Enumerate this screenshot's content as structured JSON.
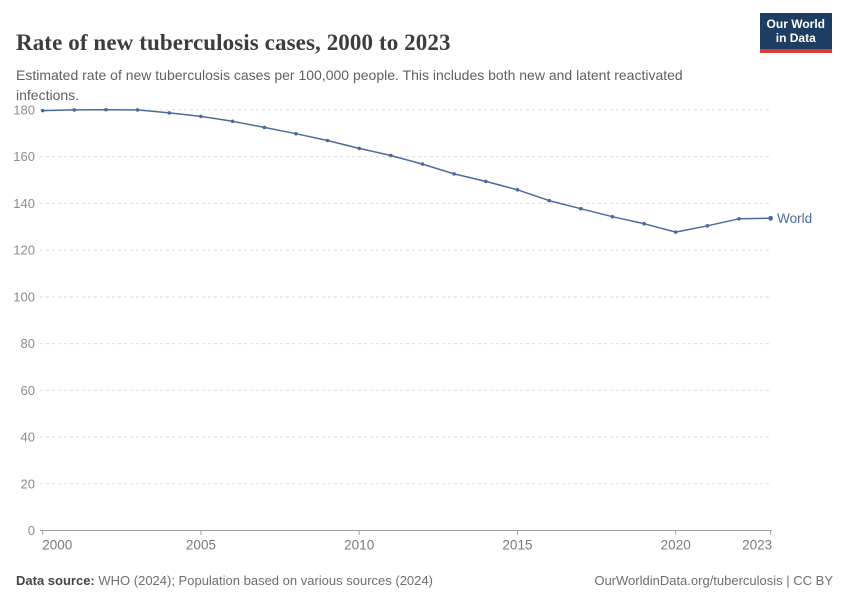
{
  "header": {
    "title": "Rate of new tuberculosis cases, 2000 to 2023",
    "subtitle": "Estimated rate of new tuberculosis cases per 100,000 people. This includes both new and latent reactivated infections.",
    "logo": {
      "line1": "Our World",
      "line2": "in Data"
    }
  },
  "chart_data": {
    "type": "line",
    "title": "Rate of new tuberculosis cases, 2000 to 2023",
    "xlabel": "",
    "ylabel": "",
    "xlim": [
      2000,
      2023
    ],
    "ylim": [
      0,
      180
    ],
    "grid": "horizontal-dashed",
    "legend_position": "end-of-line-label",
    "x_ticks": [
      2000,
      2005,
      2010,
      2015,
      2020,
      2023
    ],
    "y_ticks": [
      0,
      20,
      40,
      60,
      80,
      100,
      120,
      140,
      160,
      180
    ],
    "x": [
      2000,
      2001,
      2002,
      2003,
      2004,
      2005,
      2006,
      2007,
      2008,
      2009,
      2010,
      2011,
      2012,
      2013,
      2014,
      2015,
      2016,
      2017,
      2018,
      2019,
      2020,
      2021,
      2022,
      2023
    ],
    "series": [
      {
        "name": "World",
        "color": "#4c6a9c",
        "values": [
          179.7,
          180.0,
          180.1,
          180.0,
          178.7,
          177.2,
          175.1,
          172.5,
          169.8,
          166.9,
          163.5,
          160.5,
          156.8,
          152.6,
          149.4,
          145.8,
          141.2,
          137.7,
          134.3,
          131.3,
          127.7,
          130.4,
          133.4,
          133.6
        ]
      }
    ]
  },
  "footer": {
    "datasource_label": "Data source:",
    "datasource_text": "WHO (2024); Population based on various sources (2024)",
    "link_text": "OurWorldinData.org/tuberculosis | CC BY"
  },
  "colors": {
    "series_blue": "#4c6a9c",
    "gridline": "#dcdcdc",
    "axis": "#a3a3a3",
    "tick_label": "#8c8c8c",
    "x_tick_label": "#7a7a7a",
    "logo_bg": "#1d3d63",
    "logo_red": "#d73c34",
    "title_text": "#3d3d3d",
    "subtitle_text": "#606060",
    "footer_text": "#6e6e6e"
  }
}
